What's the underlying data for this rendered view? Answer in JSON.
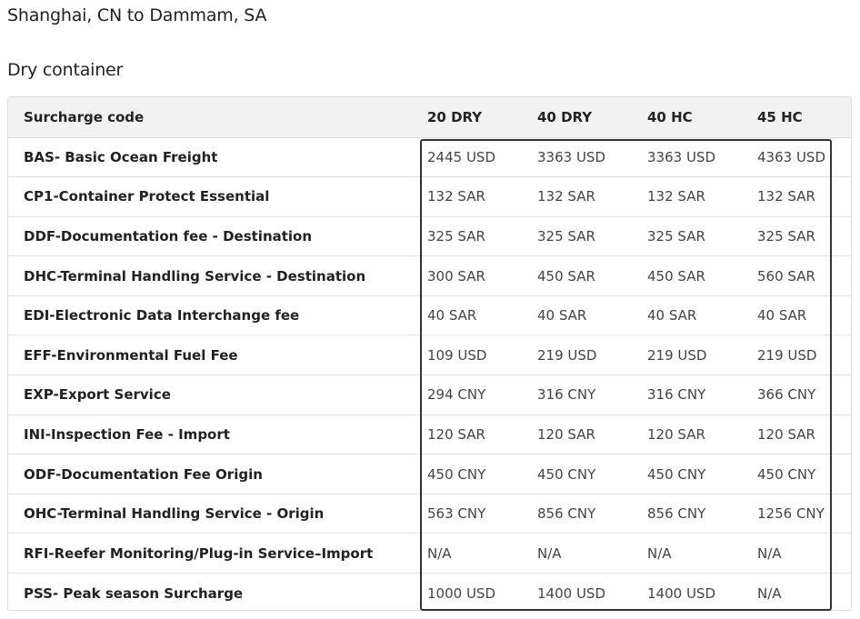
{
  "route": "Shanghai, CN to Dammam, SA",
  "container_type": "Dry container",
  "table": {
    "headers": [
      "Surcharge code",
      "20 DRY",
      "40 DRY",
      "40 HC",
      "45 HC"
    ],
    "rows": [
      {
        "code": "BAS- Basic Ocean Freight",
        "values": [
          "2445 USD",
          "3363 USD",
          "3363 USD",
          "4363 USD"
        ]
      },
      {
        "code": "CP1-Container Protect Essential",
        "values": [
          "132 SAR",
          "132 SAR",
          "132 SAR",
          "132 SAR"
        ]
      },
      {
        "code": "DDF-Documentation fee - Destination",
        "values": [
          "325 SAR",
          "325 SAR",
          "325 SAR",
          "325 SAR"
        ]
      },
      {
        "code": "DHC-Terminal Handling Service - Destination",
        "values": [
          "300 SAR",
          "450 SAR",
          "450 SAR",
          "560 SAR"
        ]
      },
      {
        "code": "EDI-Electronic Data Interchange fee",
        "values": [
          "40 SAR",
          "40 SAR",
          "40 SAR",
          "40 SAR"
        ]
      },
      {
        "code": "EFF-Environmental Fuel Fee",
        "values": [
          "109 USD",
          "219 USD",
          "219 USD",
          "219 USD"
        ]
      },
      {
        "code": "EXP-Export Service",
        "values": [
          "294 CNY",
          "316 CNY",
          "316 CNY",
          "366 CNY"
        ]
      },
      {
        "code": "INI-Inspection Fee - Import",
        "values": [
          "120 SAR",
          "120 SAR",
          "120 SAR",
          "120 SAR"
        ]
      },
      {
        "code": "ODF-Documentation Fee Origin",
        "values": [
          "450 CNY",
          "450 CNY",
          "450 CNY",
          "450 CNY"
        ]
      },
      {
        "code": "OHC-Terminal Handling Service - Origin",
        "values": [
          "563 CNY",
          "856 CNY",
          "856 CNY",
          "1256 CNY"
        ]
      },
      {
        "code": "RFI-Reefer Monitoring/Plug-in Service–Import",
        "values": [
          "N/A",
          "N/A",
          "N/A",
          "N/A"
        ]
      },
      {
        "code": "PSS- Peak season Surcharge",
        "values": [
          "1000 USD",
          "1400 USD",
          "1400 USD",
          "N/A"
        ]
      }
    ]
  },
  "colors": {
    "header_bg": "#f2f2f2",
    "border": "#dcdcdc",
    "highlight_border": "#333333"
  }
}
